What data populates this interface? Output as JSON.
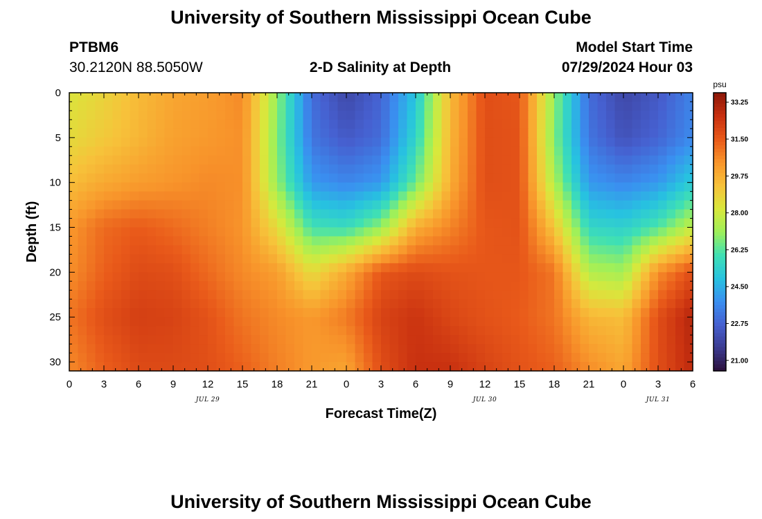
{
  "header": {
    "title": "University of Southern Mississippi Ocean Cube",
    "station_id": "PTBM6",
    "coordinates": "30.2120N  88.5050W",
    "plot_title": "2-D Salinity at Depth",
    "model_start_label": "Model Start Time",
    "model_start_value": "07/29/2024 Hour 03"
  },
  "footer": {
    "title": "University of Southern Mississippi Ocean Cube"
  },
  "colors": {
    "background": "#ffffff",
    "axis": "#000000",
    "palette": [
      "#2b0f3a",
      "#3b3a8f",
      "#4660d0",
      "#3a8ff0",
      "#27c2e0",
      "#3fe0b4",
      "#9ef05a",
      "#d8e83c",
      "#f7c23a",
      "#f8952b",
      "#e95a1a",
      "#c83010",
      "#8c1808"
    ]
  },
  "chart_data": {
    "type": "heatmap",
    "title": "2-D Salinity at Depth",
    "xlabel": "Forecast Time(Z)",
    "ylabel": "Depth (ft)",
    "x_hours_range": [
      0,
      54
    ],
    "xlim": [
      0,
      54
    ],
    "ylim": [
      0,
      31
    ],
    "y_inverted": true,
    "x_tick_labels": [
      "0",
      "3",
      "6",
      "9",
      "12",
      "15",
      "18",
      "21",
      "0",
      "3",
      "6",
      "9",
      "12",
      "15",
      "18",
      "21",
      "0",
      "3",
      "6"
    ],
    "y_ticks": [
      0,
      5,
      10,
      15,
      20,
      25,
      30
    ],
    "y_tick_labels": [
      "0",
      "5",
      "10",
      "15",
      "20",
      "25",
      "30"
    ],
    "date_labels": [
      {
        "text": "JUL 29",
        "hour": 12
      },
      {
        "text": "JUL 30",
        "hour": 36
      },
      {
        "text": "JUL 31",
        "hour": 51
      }
    ],
    "colorbar": {
      "unit": "psu",
      "min": 20.5,
      "max": 33.7,
      "tick_values": [
        33.25,
        31.5,
        29.75,
        28.0,
        26.25,
        24.5,
        22.75,
        21.0
      ],
      "tick_labels": [
        "33.25",
        "31.50",
        "29.75",
        "28.00",
        "26.25",
        "24.50",
        "22.75",
        "21.00"
      ]
    },
    "depth_samples_ft": [
      0,
      5,
      10,
      15,
      20,
      25,
      31
    ],
    "time_samples_hr": [
      0,
      3,
      6,
      9,
      12,
      15,
      18,
      21,
      24,
      27,
      30,
      33,
      36,
      39,
      42,
      45,
      48,
      51,
      54
    ],
    "salinity_psu": [
      [
        28.3,
        28.8,
        29.5,
        30.0,
        30.2,
        30.6,
        27.0,
        23.0,
        22.0,
        22.8,
        25.0,
        29.5,
        31.8,
        31.6,
        27.0,
        23.0,
        22.0,
        22.5,
        23.5
      ],
      [
        28.6,
        29.1,
        29.6,
        30.1,
        30.3,
        30.5,
        26.8,
        23.2,
        22.5,
        23.0,
        25.5,
        29.6,
        31.8,
        31.7,
        26.8,
        23.2,
        22.3,
        22.8,
        23.7
      ],
      [
        29.4,
        29.9,
        30.2,
        30.4,
        30.6,
        30.5,
        27.0,
        24.0,
        23.6,
        24.0,
        26.5,
        29.8,
        31.8,
        31.7,
        27.4,
        24.0,
        23.6,
        24.0,
        25.2
      ],
      [
        30.3,
        31.2,
        31.5,
        31.2,
        30.8,
        30.4,
        28.6,
        26.0,
        25.8,
        27.0,
        29.8,
        30.7,
        31.6,
        31.7,
        29.2,
        25.6,
        25.4,
        26.2,
        27.8
      ],
      [
        30.5,
        31.4,
        31.9,
        31.8,
        31.2,
        30.6,
        30.2,
        28.6,
        29.9,
        31.6,
        31.9,
        31.7,
        31.6,
        31.6,
        31.0,
        27.5,
        27.2,
        30.5,
        31.8
      ],
      [
        31.0,
        31.8,
        32.2,
        32.1,
        31.7,
        31.0,
        30.6,
        30.3,
        30.9,
        32.1,
        32.5,
        32.0,
        31.7,
        31.5,
        31.0,
        29.6,
        29.4,
        31.8,
        33.0
      ],
      [
        30.6,
        31.4,
        31.9,
        31.9,
        31.8,
        31.4,
        30.8,
        30.3,
        30.0,
        31.8,
        32.6,
        32.6,
        32.1,
        31.7,
        31.4,
        30.6,
        30.0,
        31.8,
        32.8
      ]
    ]
  }
}
